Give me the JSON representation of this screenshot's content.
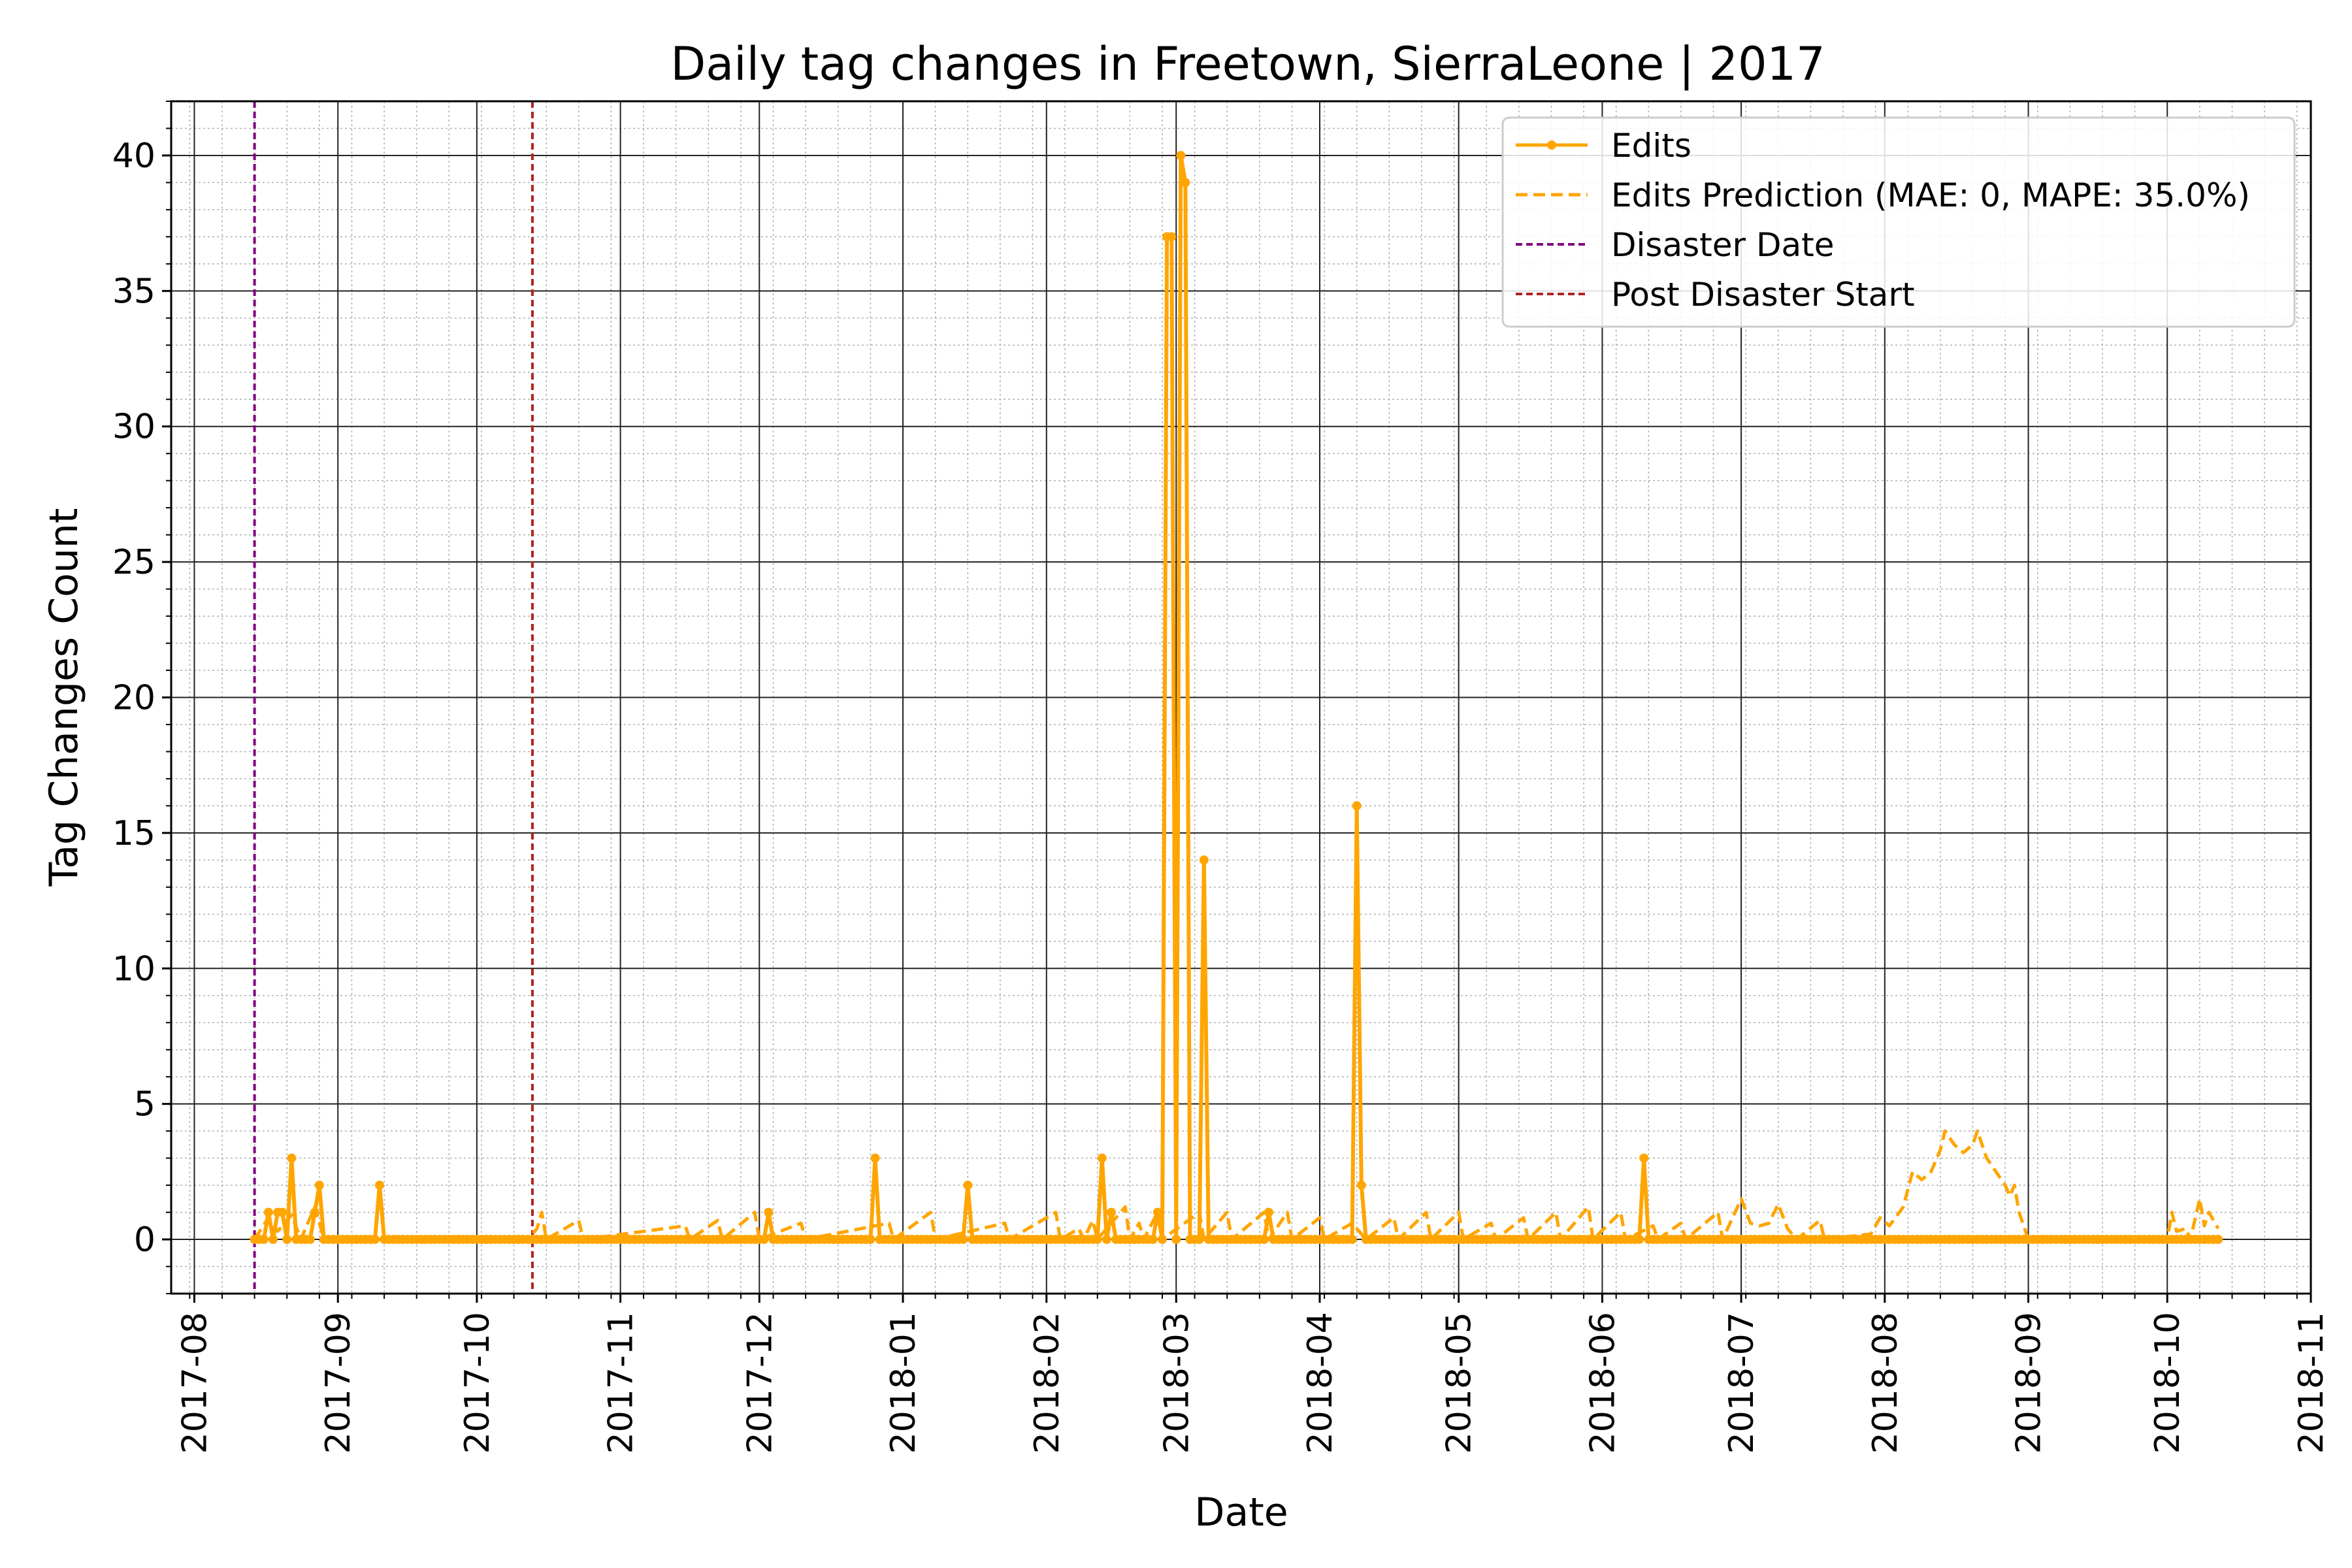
{
  "chart_data": {
    "type": "line",
    "title": "Daily tag changes in Freetown, SierraLeone | 2017",
    "xlabel": "Date",
    "ylabel": "Tag Changes Count",
    "xlim": [
      "2017-07-27",
      "2018-11-01"
    ],
    "ylim": [
      -2,
      42
    ],
    "x_ticks": [
      "2017-08",
      "2017-09",
      "2017-10",
      "2017-11",
      "2017-12",
      "2018-01",
      "2018-02",
      "2018-03",
      "2018-04",
      "2018-05",
      "2018-06",
      "2018-07",
      "2018-08",
      "2018-09",
      "2018-10",
      "2018-11"
    ],
    "y_ticks": [
      "0",
      "5",
      "10",
      "15",
      "20",
      "25",
      "30",
      "35",
      "40"
    ],
    "grid": true,
    "minor_grid": true,
    "legend_position": "top-right",
    "x_start": "2017-08-14",
    "x_end": "2018-10-12",
    "series": [
      {
        "name": "Edits",
        "style": "solid-markers",
        "color": "#FFA500",
        "points": [
          [
            "2017-08-14",
            0
          ],
          [
            "2017-08-15",
            0
          ],
          [
            "2017-08-16",
            0
          ],
          [
            "2017-08-17",
            1
          ],
          [
            "2017-08-18",
            0
          ],
          [
            "2017-08-19",
            1
          ],
          [
            "2017-08-20",
            1
          ],
          [
            "2017-08-21",
            0
          ],
          [
            "2017-08-22",
            3
          ],
          [
            "2017-08-23",
            0
          ],
          [
            "2017-08-24",
            0
          ],
          [
            "2017-08-25",
            0
          ],
          [
            "2017-08-26",
            0
          ],
          [
            "2017-08-27",
            1
          ],
          [
            "2017-08-28",
            2
          ],
          [
            "2017-08-29",
            0
          ],
          [
            "2017-09-09",
            0
          ],
          [
            "2017-09-10",
            2
          ],
          [
            "2017-09-11",
            0
          ],
          [
            "2017-12-02",
            0
          ],
          [
            "2017-12-03",
            1
          ],
          [
            "2017-12-04",
            0
          ],
          [
            "2017-12-25",
            0
          ],
          [
            "2017-12-26",
            3
          ],
          [
            "2017-12-27",
            0
          ],
          [
            "2018-01-14",
            0
          ],
          [
            "2018-01-15",
            2
          ],
          [
            "2018-01-16",
            0
          ],
          [
            "2018-02-12",
            0
          ],
          [
            "2018-02-13",
            3
          ],
          [
            "2018-02-14",
            0
          ],
          [
            "2018-02-15",
            1
          ],
          [
            "2018-02-16",
            0
          ],
          [
            "2018-02-24",
            0
          ],
          [
            "2018-02-25",
            1
          ],
          [
            "2018-02-26",
            0
          ],
          [
            "2018-02-27",
            37
          ],
          [
            "2018-02-28",
            37
          ],
          [
            "2018-03-01",
            0
          ],
          [
            "2018-03-02",
            40
          ],
          [
            "2018-03-03",
            39
          ],
          [
            "2018-03-04",
            0
          ],
          [
            "2018-03-05",
            0
          ],
          [
            "2018-03-06",
            0
          ],
          [
            "2018-03-07",
            14
          ],
          [
            "2018-03-08",
            0
          ],
          [
            "2018-03-20",
            0
          ],
          [
            "2018-03-21",
            1
          ],
          [
            "2018-03-22",
            0
          ],
          [
            "2018-04-08",
            0
          ],
          [
            "2018-04-09",
            16
          ],
          [
            "2018-04-10",
            2
          ],
          [
            "2018-04-11",
            0
          ],
          [
            "2018-06-09",
            0
          ],
          [
            "2018-06-10",
            3
          ],
          [
            "2018-06-11",
            0
          ],
          [
            "2018-10-12",
            0
          ]
        ]
      },
      {
        "name": "Edits Prediction (MAE: 0, MAPE: 35.0%)",
        "style": "dashed",
        "color": "#FFA500",
        "points": [
          [
            "2017-08-14",
            0
          ],
          [
            "2017-08-17",
            0.8
          ],
          [
            "2017-08-19",
            0.3
          ],
          [
            "2017-08-22",
            0.9
          ],
          [
            "2017-08-24",
            0
          ],
          [
            "2017-08-27",
            1.2
          ],
          [
            "2017-08-29",
            0
          ],
          [
            "2017-10-12",
            0
          ],
          [
            "2017-10-14",
            0.4
          ],
          [
            "2017-10-15",
            1.0
          ],
          [
            "2017-10-16",
            0
          ],
          [
            "2017-10-23",
            0.7
          ],
          [
            "2017-10-24",
            0
          ],
          [
            "2017-11-15",
            0.5
          ],
          [
            "2017-11-16",
            0
          ],
          [
            "2017-11-22",
            0.7
          ],
          [
            "2017-11-23",
            0
          ],
          [
            "2017-11-30",
            1.0
          ],
          [
            "2017-12-01",
            0
          ],
          [
            "2017-12-10",
            0.6
          ],
          [
            "2017-12-11",
            0
          ],
          [
            "2017-12-29",
            0.6
          ],
          [
            "2017-12-30",
            0
          ],
          [
            "2018-01-07",
            1.0
          ],
          [
            "2018-01-08",
            0
          ],
          [
            "2018-01-23",
            0.6
          ],
          [
            "2018-01-24",
            0
          ],
          [
            "2018-02-03",
            1.0
          ],
          [
            "2018-02-04",
            0
          ],
          [
            "2018-02-08",
            0.4
          ],
          [
            "2018-02-09",
            0
          ],
          [
            "2018-02-11",
            0.7
          ],
          [
            "2018-02-12",
            0
          ],
          [
            "2018-02-18",
            1.2
          ],
          [
            "2018-02-19",
            0
          ],
          [
            "2018-02-21",
            0.6
          ],
          [
            "2018-02-22",
            0
          ],
          [
            "2018-02-25",
            1.0
          ],
          [
            "2018-02-26",
            0
          ],
          [
            "2018-03-06",
            1.0
          ],
          [
            "2018-03-07",
            0
          ],
          [
            "2018-03-12",
            1.0
          ],
          [
            "2018-03-13",
            0
          ],
          [
            "2018-03-20",
            1.0
          ],
          [
            "2018-03-21",
            0
          ],
          [
            "2018-03-25",
            1.0
          ],
          [
            "2018-03-26",
            0
          ],
          [
            "2018-04-01",
            0.8
          ],
          [
            "2018-04-02",
            0
          ],
          [
            "2018-04-08",
            0.6
          ],
          [
            "2018-04-11",
            0
          ],
          [
            "2018-04-17",
            0.8
          ],
          [
            "2018-04-18",
            0
          ],
          [
            "2018-04-24",
            1.0
          ],
          [
            "2018-04-25",
            0
          ],
          [
            "2018-05-01",
            1.0
          ],
          [
            "2018-05-02",
            0
          ],
          [
            "2018-05-08",
            0.6
          ],
          [
            "2018-05-09",
            0
          ],
          [
            "2018-05-15",
            0.8
          ],
          [
            "2018-05-16",
            0
          ],
          [
            "2018-05-22",
            1.0
          ],
          [
            "2018-05-23",
            0
          ],
          [
            "2018-05-29",
            1.2
          ],
          [
            "2018-05-30",
            0
          ],
          [
            "2018-06-05",
            1.0
          ],
          [
            "2018-06-06",
            0
          ],
          [
            "2018-06-12",
            0.5
          ],
          [
            "2018-06-13",
            0
          ],
          [
            "2018-06-18",
            0.6
          ],
          [
            "2018-06-19",
            0
          ],
          [
            "2018-06-26",
            1.0
          ],
          [
            "2018-06-27",
            0
          ],
          [
            "2018-07-01",
            1.5
          ],
          [
            "2018-07-03",
            0.6
          ],
          [
            "2018-07-05",
            0.5
          ],
          [
            "2018-07-07",
            0.6
          ],
          [
            "2018-07-09",
            1.3
          ],
          [
            "2018-07-11",
            0.4
          ],
          [
            "2018-07-13",
            0
          ],
          [
            "2018-07-18",
            0.7
          ],
          [
            "2018-07-19",
            0
          ],
          [
            "2018-07-29",
            0.2
          ],
          [
            "2018-07-31",
            0.8
          ],
          [
            "2018-08-02",
            0.5
          ],
          [
            "2018-08-05",
            1.2
          ],
          [
            "2018-08-07",
            2.5
          ],
          [
            "2018-08-09",
            2.2
          ],
          [
            "2018-08-11",
            2.5
          ],
          [
            "2018-08-13",
            3.3
          ],
          [
            "2018-08-14",
            4.0
          ],
          [
            "2018-08-16",
            3.5
          ],
          [
            "2018-08-18",
            3.2
          ],
          [
            "2018-08-20",
            3.5
          ],
          [
            "2018-08-21",
            4.0
          ],
          [
            "2018-08-23",
            3.0
          ],
          [
            "2018-08-25",
            2.5
          ],
          [
            "2018-08-27",
            2.0
          ],
          [
            "2018-08-28",
            1.6
          ],
          [
            "2018-08-29",
            2.0
          ],
          [
            "2018-08-30",
            1.0
          ],
          [
            "2018-09-01",
            0
          ],
          [
            "2018-10-01",
            0
          ],
          [
            "2018-10-02",
            1.0
          ],
          [
            "2018-10-03",
            0.3
          ],
          [
            "2018-10-05",
            0.4
          ],
          [
            "2018-10-06",
            0
          ],
          [
            "2018-10-08",
            1.5
          ],
          [
            "2018-10-09",
            0.5
          ],
          [
            "2018-10-10",
            1.0
          ],
          [
            "2018-10-12",
            0.4
          ]
        ]
      }
    ],
    "vlines": [
      {
        "name": "Disaster Date",
        "x": "2017-08-14",
        "color": "#800080",
        "style": "dashed"
      },
      {
        "name": "Post Disaster Start",
        "x": "2017-10-13",
        "color": "#B22222",
        "style": "dashed"
      }
    ]
  }
}
